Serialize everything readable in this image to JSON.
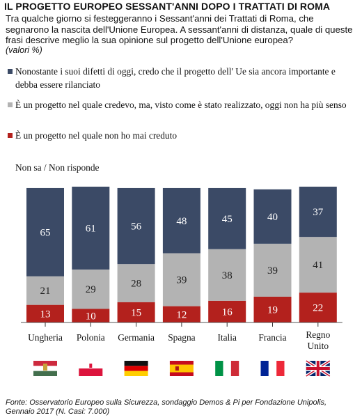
{
  "title": "IL PROGETTO EUROPEO SESSANT'ANNI DOPO I TRATTATI DI ROMA",
  "question": "Tra qualche giorno si festeggeranno i Sessant'anni dei Trattati di Roma, che segnarono la nascita dell'Unione Europea. A sessant'anni di distanza, quale di queste frasi descrive meglio la sua opinione sul progetto dell'Unione europea?",
  "unit": "(valori %)",
  "source": "Fonte: Osservatorio Europeo sulla Sicurezza, sondaggio Demos & Pi per Fondazione Unipolis, Gennaio 2017 (N. Casi: 7.000)",
  "colors": {
    "rilanciato": "#3b4a66",
    "non_ha_senso": "#b3b3b3",
    "mai_creduto": "#b3211d",
    "non_sa": "#ffffff"
  },
  "chart_data": {
    "type": "bar",
    "stacked": true,
    "categories": [
      "Ungheria",
      "Polonia",
      "Germania",
      "Spagna",
      "Italia",
      "Francia",
      "Regno Unito"
    ],
    "series": [
      {
        "name": "È un progetto nel quale non ho mai creduto",
        "key": "mai_creduto",
        "values": [
          13,
          10,
          15,
          12,
          16,
          19,
          22
        ]
      },
      {
        "name": "È un progetto nel quale credevo, ma, visto come è stato realizzato, oggi non ha più senso",
        "key": "non_ha_senso",
        "values": [
          21,
          29,
          28,
          39,
          38,
          39,
          41
        ]
      },
      {
        "name": "Nonostante i suoi difetti di oggi, credo che il progetto dell' Ue sia ancora importante e debba essere rilanciato",
        "key": "rilanciato",
        "values": [
          65,
          61,
          56,
          48,
          45,
          40,
          37
        ]
      },
      {
        "name": "Non sa / Non risponde",
        "key": "non_sa",
        "values": [
          1,
          0,
          1,
          1,
          1,
          2,
          0
        ]
      }
    ],
    "ylim": [
      0,
      100
    ],
    "legend_position": "top",
    "flags": [
      "hungary-flag",
      "poland-flag",
      "germany-flag",
      "spain-flag",
      "italy-flag",
      "france-flag",
      "uk-flag"
    ]
  }
}
